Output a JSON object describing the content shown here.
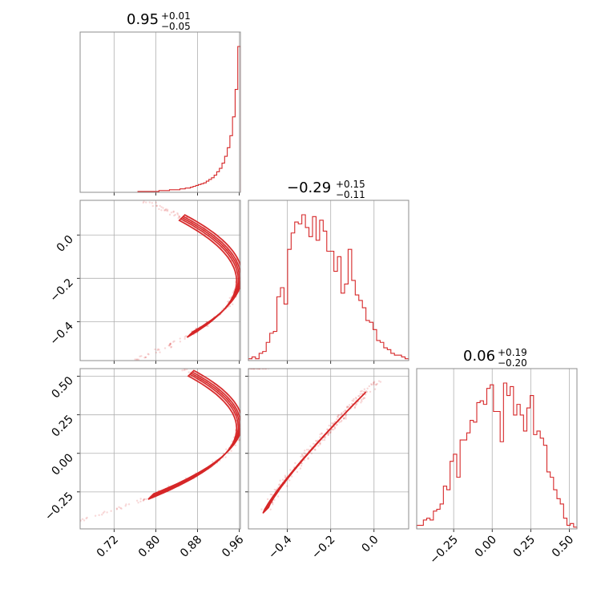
{
  "chart_data": {
    "type": "corner",
    "color": "#d62728",
    "parameters": [
      {
        "title": {
          "median": "0.95",
          "plus": "+0.01",
          "minus": "−0.05"
        },
        "range": [
          0.655,
          0.962
        ],
        "ticks": [
          {
            "value": 0.72,
            "label": "0.72"
          },
          {
            "value": 0.8,
            "label": "0.80"
          },
          {
            "value": 0.88,
            "label": "0.88"
          },
          {
            "value": 0.96,
            "label": "0.96"
          }
        ]
      },
      {
        "title": {
          "median": "−0.29",
          "plus": "+0.15",
          "minus": "−0.11"
        },
        "range": [
          -0.58,
          0.16
        ],
        "ticks": [
          {
            "value": -0.4,
            "label": "−0.4"
          },
          {
            "value": -0.2,
            "label": "−0.2"
          },
          {
            "value": 0.0,
            "label": "0.0"
          }
        ]
      },
      {
        "title": {
          "median": "0.06",
          "plus": "+0.19",
          "minus": "−0.20"
        },
        "range": [
          -0.49,
          0.55
        ],
        "ticks": [
          {
            "value": -0.25,
            "label": "−0.25"
          },
          {
            "value": 0.0,
            "label": "0.00"
          },
          {
            "value": 0.25,
            "label": "0.25"
          },
          {
            "value": 0.5,
            "label": "0.50"
          }
        ]
      }
    ],
    "histograms": [
      {
        "param": 0,
        "values": [
          0,
          0,
          0,
          0,
          0,
          0,
          0,
          0,
          0,
          0,
          0,
          0,
          0,
          0,
          0,
          0,
          0,
          0,
          0,
          0,
          0,
          0,
          1,
          1,
          1,
          1,
          1,
          1,
          1,
          1,
          2,
          2,
          2,
          2,
          3,
          3,
          3,
          3,
          4,
          4,
          5,
          5,
          6,
          7,
          8,
          9,
          10,
          11,
          13,
          15,
          17,
          20,
          24,
          28,
          34,
          42,
          52,
          66,
          88,
          120,
          170
        ]
      },
      {
        "param": 1,
        "values": [
          1,
          2,
          1,
          4,
          5,
          10,
          15,
          16,
          35,
          40,
          31,
          61,
          70,
          76,
          75,
          80,
          73,
          68,
          79,
          66,
          77,
          71,
          60,
          60,
          49,
          57,
          37,
          42,
          61,
          44,
          36,
          33,
          29,
          22,
          21,
          17,
          11,
          10,
          7,
          6,
          4,
          3,
          3,
          2,
          1
        ]
      },
      {
        "param": 2,
        "values": [
          2,
          2,
          5,
          6,
          5,
          10,
          11,
          14,
          24,
          22,
          38,
          42,
          29,
          50,
          50,
          54,
          61,
          60,
          71,
          72,
          70,
          79,
          81,
          66,
          66,
          49,
          82,
          75,
          80,
          64,
          70,
          64,
          55,
          68,
          75,
          53,
          55,
          51,
          47,
          32,
          29,
          22,
          17,
          14,
          6,
          2,
          3,
          1
        ]
      }
    ],
    "contour_curves": [
      {
        "x_param": 0,
        "y_param": 1,
        "a": 0.96,
        "c": 1.4,
        "y0": -0.2,
        "y_range": [
          -0.46,
          0.08
        ]
      },
      {
        "x_param": 0,
        "y_param": 2,
        "a": 0.96,
        "c": 0.8,
        "y0": 0.18,
        "y_range": [
          -0.28,
          0.52
        ]
      },
      {
        "x_param": 1,
        "y_param": 2,
        "linear": true,
        "x_range": [
          -0.5,
          -0.05
        ],
        "y_range": [
          -0.37,
          0.38
        ]
      }
    ]
  }
}
